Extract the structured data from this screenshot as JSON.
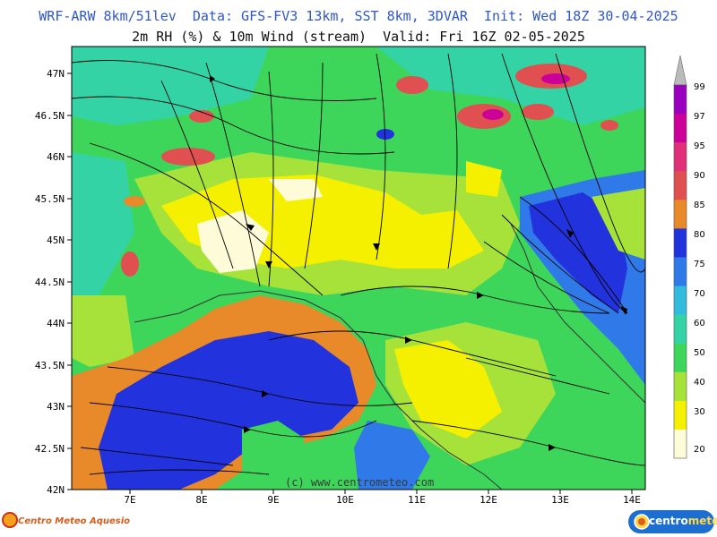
{
  "header": {
    "line1": "WRF-ARW 8km/51lev  Data: GFS-FV3 13km, SST 8km, 3DVAR  Init: Wed 18Z 30-04-2025",
    "line2": "2m RH (%) & 10m Wind (stream)  Valid: Fri 16Z 02-05-2025"
  },
  "axes": {
    "lat_labels": [
      "47N",
      "46.5N",
      "46N",
      "45.5N",
      "45N",
      "44.5N",
      "44N",
      "43.5N",
      "43N",
      "42.5N",
      "42N"
    ],
    "lon_labels": [
      "7E",
      "8E",
      "9E",
      "10E",
      "11E",
      "12E",
      "13E",
      "14E"
    ]
  },
  "colorbar": {
    "labels": [
      "99",
      "97",
      "95",
      "90",
      "85",
      "80",
      "75",
      "70",
      "60",
      "50",
      "40",
      "30",
      "20"
    ],
    "colors": [
      "#9a00c0",
      "#cc0099",
      "#e0307a",
      "#e05050",
      "#e88a2a",
      "#2233dd",
      "#2f7ae8",
      "#33bbdd",
      "#33d3a6",
      "#3dd65a",
      "#a6e23a",
      "#f5f000",
      "#fdfbd8"
    ]
  },
  "footer": {
    "credit": "(c) www.centrometeo.com",
    "logo_left": "Centro Meteo Aquesio",
    "logo_right_a": "centro",
    "logo_right_b": "meteo"
  }
}
